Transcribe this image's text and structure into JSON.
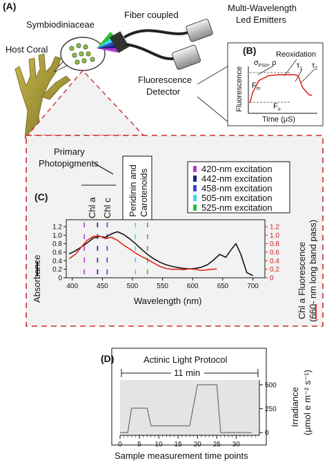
{
  "panelA": {
    "letter": "(A)",
    "symbio_label": "Symbiodiniaceae",
    "coral_label": "Host Coral",
    "fiber_label": "Fiber coupled",
    "emitters_label_line1": "Multi-Wavelength",
    "emitters_label_line2": "Led Emitters",
    "detector_label_line1": "Fluorescence",
    "detector_label_line2": "Detector"
  },
  "panelB": {
    "letter": "(B)",
    "reox_label": "Reoxidation",
    "sigma_label": "σ",
    "sigma_sub": "PSII",
    "rho_label": ", ρ",
    "fm_label": "F",
    "fm_sub": "m",
    "fo_label": "F",
    "fo_sub": "o",
    "tau1": "τ",
    "tau1_sub": "1",
    "tau2": "τ",
    "tau2_sub": "2",
    "ylabel": "Fluorescence",
    "xlabel": "Time (μS)"
  },
  "panelC": {
    "letter": "(C)",
    "primary_label_line1": "Primary",
    "primary_label_line2": "Photopigments",
    "chla_label": "Chl a",
    "chlc_label": "Chl c",
    "perid_line1": "Peridinin and",
    "perid_line2": "Carotenoids",
    "legend": [
      {
        "label": "420-nm excitation",
        "color": "#b23bd6",
        "nm": 420
      },
      {
        "label": "442-nm excitation",
        "color": "#1a237e",
        "nm": 442
      },
      {
        "label": "458-nm excitation",
        "color": "#2f48d8",
        "nm": 458
      },
      {
        "label": "505-nm excitation",
        "color": "#3ad8e8",
        "nm": 505
      },
      {
        "label": "525-nm excitation",
        "color": "#2ec02e",
        "nm": 525
      }
    ],
    "ylabel_left": "Absorbance",
    "ylabel_right_line1": "Chl a Fluorescence",
    "ylabel_right_line2": "(660- nm long band pass)",
    "xlabel": "Wavelength (nm)",
    "xticks": [
      "400",
      "450",
      "500",
      "550",
      "600",
      "650",
      "700"
    ],
    "yticks_left": [
      "0",
      "0.2",
      "0.4",
      "0.6",
      "0.8",
      "1.0",
      "1.2"
    ],
    "yticks_right": [
      "0",
      "0.2",
      "0.4",
      "0.6",
      "0.8",
      "1.0",
      "1.2"
    ]
  },
  "panelD": {
    "letter": "(D)",
    "title": "Actinic Light Protocol",
    "span_label": "11 min",
    "xlabel": "Sample measurement time points",
    "ylabel_line1": "Irradiance",
    "ylabel_line2": "(μmol e m⁻² s⁻¹)",
    "xticks": [
      "0",
      "5",
      "10",
      "15",
      "20",
      "25",
      "30"
    ],
    "yticks": [
      "0",
      "250",
      "500"
    ]
  },
  "colors": {
    "dashed_box": "#cc2b2b",
    "absorbance": "#111111",
    "fluorescence": "#e0261c",
    "panelD_fill": "#e4e4e4",
    "coral": "#a99a3a"
  },
  "chart_data": [
    {
      "type": "line",
      "panel": "C",
      "xlabel": "Wavelength (nm)",
      "xlim": [
        390,
        720
      ],
      "series": [
        {
          "name": "Absorbance",
          "axis": "left",
          "ylim": [
            0,
            1.2
          ],
          "x": [
            395,
            405,
            415,
            425,
            435,
            445,
            455,
            465,
            475,
            485,
            495,
            505,
            515,
            525,
            535,
            545,
            555,
            565,
            575,
            585,
            595,
            605,
            615,
            625,
            635,
            645,
            655,
            665,
            672,
            680,
            690,
            700
          ],
          "y": [
            0.56,
            0.63,
            0.72,
            0.82,
            0.93,
            0.97,
            0.95,
            1.03,
            1.08,
            1.02,
            0.92,
            0.8,
            0.67,
            0.55,
            0.45,
            0.37,
            0.31,
            0.27,
            0.24,
            0.22,
            0.21,
            0.22,
            0.25,
            0.31,
            0.42,
            0.55,
            0.48,
            0.68,
            0.8,
            0.55,
            0.12,
            0.05
          ]
        },
        {
          "name": "Chl a Fluorescence",
          "axis": "right",
          "ylim": [
            0,
            1.2
          ],
          "x": [
            395,
            405,
            415,
            425,
            435,
            445,
            455,
            465,
            475,
            485,
            495,
            505,
            515,
            525,
            535,
            545,
            555,
            565,
            575,
            585,
            595,
            605,
            615,
            625,
            640
          ],
          "y": [
            0.45,
            0.55,
            0.72,
            0.88,
            0.97,
            0.98,
            0.92,
            0.95,
            0.88,
            0.77,
            0.68,
            0.58,
            0.5,
            0.43,
            0.35,
            0.27,
            0.22,
            0.2,
            0.2,
            0.19,
            0.21,
            0.2,
            0.17,
            0.19,
            0.21
          ]
        }
      ]
    },
    {
      "type": "line",
      "panel": "D",
      "title": "Actinic Light Protocol",
      "xlabel": "Sample measurement time points",
      "ylabel": "Irradiance",
      "xlim": [
        0,
        36
      ],
      "ylim": [
        0,
        550
      ],
      "series": [
        {
          "name": "Irradiance",
          "x": [
            0,
            2,
            3,
            7,
            8,
            12,
            17,
            18,
            20,
            25,
            26,
            34
          ],
          "y": [
            0,
            0,
            255,
            255,
            70,
            70,
            70,
            70,
            500,
            500,
            0,
            0
          ]
        }
      ]
    },
    {
      "type": "line",
      "panel": "B",
      "xlabel": "Time (μS)",
      "ylabel": "Fluorescence",
      "series": [
        {
          "name": "Fluorescence transient",
          "x": [
            0,
            0.05,
            0.15,
            0.3,
            0.45,
            0.6,
            0.72,
            0.78,
            0.85,
            0.95,
            1.0
          ],
          "y": [
            0.22,
            0.45,
            0.7,
            0.8,
            0.82,
            0.82,
            0.82,
            0.8,
            0.55,
            0.4,
            0.38
          ]
        }
      ]
    }
  ]
}
